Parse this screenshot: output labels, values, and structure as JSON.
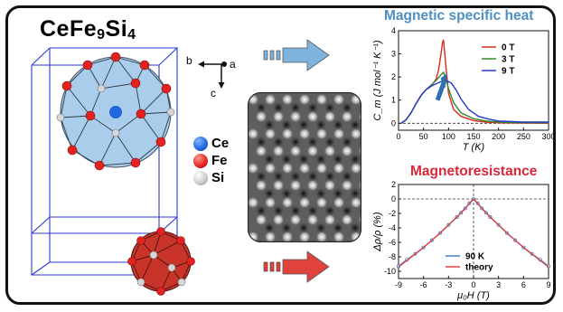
{
  "figure": {
    "title_main": "CeFe",
    "title_sub1": "9",
    "title_mid": "Si",
    "title_sub2": "4",
    "axes": {
      "b": "b",
      "a": "a",
      "c": "c"
    },
    "legend": [
      {
        "label": "Ce",
        "color": "#1f66e0"
      },
      {
        "label": "Fe",
        "color": "#e3211f"
      },
      {
        "label": "Si",
        "color": "#bdbdbd"
      }
    ],
    "arrow_colors": {
      "top": "#7fb2dc",
      "bottom": "#e0433c"
    }
  },
  "panel_specific_heat": {
    "heading": "Magnetic specific heat",
    "heading_color": "#4f8fc0",
    "ylabel": "C_m (J mol⁻¹ K⁻¹)",
    "xlabel": "T (K)"
  },
  "panel_magnetoresistance": {
    "heading": "Magnetoresistance",
    "heading_color": "#d8283b",
    "ylabel": "Δρ/ρ (%)",
    "xlabel": "μ₀H (T)"
  },
  "chart_data": [
    {
      "type": "line",
      "title": "Magnetic specific heat",
      "xlabel": "T (K)",
      "ylabel": "C_m (J mol⁻¹ K⁻¹)",
      "xlim": [
        0,
        300
      ],
      "ylim": [
        -0.3,
        4
      ],
      "xticks": [
        0,
        50,
        100,
        150,
        200,
        250,
        300
      ],
      "yticks": [
        0,
        1,
        2,
        3,
        4
      ],
      "legend_position": "top-right",
      "series": [
        {
          "name": "0 T",
          "color": "#d62b1e",
          "x": [
            5,
            15,
            25,
            35,
            45,
            55,
            65,
            75,
            80,
            85,
            88,
            90,
            95,
            100,
            110,
            125,
            150,
            175,
            200,
            250,
            300
          ],
          "y": [
            0.0,
            0.15,
            0.45,
            0.85,
            1.2,
            1.45,
            1.6,
            1.9,
            2.3,
            3.0,
            3.5,
            3.6,
            2.4,
            1.3,
            0.6,
            0.3,
            0.12,
            0.05,
            0.02,
            0.01,
            0.0
          ]
        },
        {
          "name": "3 T",
          "color": "#2e8b2e",
          "x": [
            5,
            15,
            25,
            35,
            45,
            55,
            65,
            75,
            85,
            90,
            95,
            100,
            110,
            125,
            150,
            175,
            200,
            250,
            300
          ],
          "y": [
            0.0,
            0.15,
            0.45,
            0.85,
            1.2,
            1.45,
            1.65,
            1.85,
            2.1,
            2.2,
            1.9,
            1.5,
            0.9,
            0.45,
            0.2,
            0.1,
            0.05,
            0.03,
            0.02
          ]
        },
        {
          "name": "9 T",
          "color": "#2438c8",
          "x": [
            5,
            15,
            25,
            35,
            45,
            55,
            65,
            75,
            85,
            95,
            105,
            115,
            125,
            140,
            160,
            180,
            200,
            250,
            300
          ],
          "y": [
            0.0,
            0.15,
            0.45,
            0.85,
            1.2,
            1.45,
            1.6,
            1.7,
            1.8,
            1.85,
            1.75,
            1.45,
            1.05,
            0.6,
            0.3,
            0.18,
            0.1,
            0.05,
            0.05
          ]
        }
      ]
    },
    {
      "type": "line",
      "title": "Magnetoresistance",
      "xlabel": "μ₀H (T)",
      "ylabel": "Δρ/ρ (%)",
      "xlim": [
        -9,
        9
      ],
      "ylim": [
        -11,
        2
      ],
      "xticks": [
        -9,
        -6,
        -3,
        0,
        3,
        6,
        9
      ],
      "yticks": [
        2,
        0,
        -2,
        -4,
        -6,
        -8,
        -10
      ],
      "legend_position": "bottom-left",
      "series": [
        {
          "name": "90 K",
          "color": "#3a7fc4",
          "x": [
            -9,
            -8,
            -7,
            -6,
            -5,
            -4,
            -3,
            -2,
            -1.5,
            -1,
            -0.5,
            0,
            0.5,
            1,
            1.5,
            2,
            3,
            4,
            5,
            6,
            7,
            8,
            9
          ],
          "y": [
            -9.3,
            -8.4,
            -7.6,
            -6.7,
            -5.7,
            -4.7,
            -3.6,
            -2.5,
            -1.9,
            -1.3,
            -0.6,
            0,
            -0.6,
            -1.3,
            -1.9,
            -2.5,
            -3.6,
            -4.7,
            -5.7,
            -6.7,
            -7.6,
            -8.4,
            -9.3
          ]
        },
        {
          "name": "theory",
          "color": "#e04040",
          "x": [
            -9,
            -8,
            -7,
            -6,
            -5,
            -4,
            -3,
            -2,
            -1.5,
            -1,
            -0.5,
            0,
            0.5,
            1,
            1.5,
            2,
            3,
            4,
            5,
            6,
            7,
            8,
            9
          ],
          "y": [
            -9.4,
            -8.5,
            -7.6,
            -6.7,
            -5.7,
            -4.7,
            -3.6,
            -2.5,
            -1.9,
            -1.3,
            -0.6,
            0,
            -0.6,
            -1.3,
            -1.9,
            -2.5,
            -3.6,
            -4.7,
            -5.7,
            -6.7,
            -7.6,
            -8.5,
            -9.4
          ]
        }
      ]
    }
  ]
}
